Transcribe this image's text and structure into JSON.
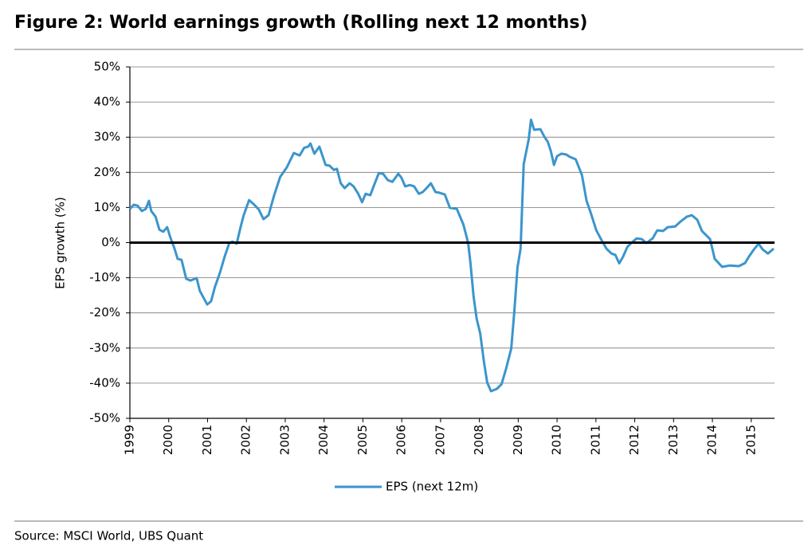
{
  "chart_data": {
    "type": "line",
    "title": "Figure 2: World earnings growth (Rolling next 12 months)",
    "ylabel": "EPS growth (%)",
    "source": "Source:  MSCI World, UBS Quant",
    "x": [
      1999.0,
      1999.1,
      1999.2,
      1999.31,
      1999.41,
      1999.49,
      1999.55,
      1999.66,
      1999.76,
      1999.86,
      1999.96,
      2000.04,
      2000.15,
      2000.23,
      2000.33,
      2000.45,
      2000.56,
      2000.72,
      2000.8,
      2000.99,
      2001.09,
      2001.19,
      2001.32,
      2001.44,
      2001.56,
      2001.64,
      2001.75,
      2001.85,
      2001.93,
      2002.07,
      2002.2,
      2002.32,
      2002.44,
      2002.57,
      2002.71,
      2002.87,
      2003.04,
      2003.22,
      2003.37,
      2003.49,
      2003.59,
      2003.65,
      2003.75,
      2003.88,
      2004.04,
      2004.14,
      2004.25,
      2004.33,
      2004.43,
      2004.53,
      2004.66,
      2004.76,
      2004.88,
      2004.98,
      2005.07,
      2005.19,
      2005.29,
      2005.41,
      2005.52,
      2005.64,
      2005.76,
      2005.91,
      2005.99,
      2006.09,
      2006.21,
      2006.32,
      2006.44,
      2006.54,
      2006.64,
      2006.75,
      2006.87,
      2006.97,
      2007.11,
      2007.24,
      2007.42,
      2007.59,
      2007.71,
      2007.77,
      2007.85,
      2007.93,
      2008.02,
      2008.12,
      2008.2,
      2008.3,
      2008.45,
      2008.57,
      2008.69,
      2008.82,
      2008.9,
      2008.98,
      2009.06,
      2009.14,
      2009.27,
      2009.33,
      2009.41,
      2009.57,
      2009.68,
      2009.76,
      2009.84,
      2009.92,
      2010.0,
      2010.11,
      2010.23,
      2010.33,
      2010.48,
      2010.64,
      2010.76,
      2010.86,
      2011.01,
      2011.13,
      2011.27,
      2011.4,
      2011.5,
      2011.6,
      2011.7,
      2011.81,
      2011.93,
      2012.05,
      2012.18,
      2012.3,
      2012.46,
      2012.58,
      2012.73,
      2012.85,
      2013.04,
      2013.18,
      2013.34,
      2013.47,
      2013.61,
      2013.73,
      2013.94,
      2014.06,
      2014.25,
      2014.45,
      2014.68,
      2014.84,
      2014.94,
      2015.07,
      2015.19,
      2015.29,
      2015.43,
      2015.58
    ],
    "series": [
      {
        "name": "EPS (next 12m)",
        "color": "#3b95cc",
        "values": [
          9.6,
          10.8,
          10.5,
          9,
          9.6,
          11.9,
          9,
          7.4,
          3.7,
          3.1,
          4.4,
          1.5,
          -1.7,
          -4.6,
          -4.9,
          -10.3,
          -10.8,
          -10.1,
          -13.7,
          -17.6,
          -16.7,
          -12.6,
          -8.5,
          -4,
          -0.1,
          0.3,
          -0.3,
          4.4,
          7.8,
          12.1,
          10.8,
          9.4,
          6.7,
          7.8,
          13.3,
          18.7,
          21.4,
          25.5,
          24.8,
          27,
          27.3,
          28.2,
          25.3,
          27.3,
          22.1,
          21.9,
          20.7,
          21,
          16.9,
          15.5,
          16.9,
          16,
          13.9,
          11.5,
          13.9,
          13.5,
          16.4,
          19.8,
          19.6,
          17.8,
          17.3,
          19.6,
          18.5,
          16,
          16.4,
          16,
          13.9,
          14.4,
          15.5,
          16.9,
          14.4,
          14.2,
          13.7,
          9.9,
          9.6,
          5.1,
          -0.1,
          -5.8,
          -15.3,
          -21.7,
          -25.8,
          -34.2,
          -39.8,
          -42.3,
          -41.6,
          -40.3,
          -35.8,
          -30.1,
          -19.4,
          -7.1,
          -1.7,
          22.3,
          29.4,
          35,
          32.1,
          32.3,
          30,
          28.7,
          26,
          22.1,
          24.6,
          25.3,
          25.1,
          24.4,
          23.7,
          19.2,
          11.9,
          8.7,
          3.5,
          1,
          -1.7,
          -3.1,
          -3.5,
          -5.9,
          -4,
          -1.2,
          0.1,
          1.2,
          1,
          -0.1,
          1.2,
          3.5,
          3.3,
          4.4,
          4.6,
          6,
          7.4,
          7.8,
          6.5,
          3.3,
          1,
          -4.6,
          -6.9,
          -6.5,
          -6.7,
          -5.8,
          -4,
          -1.9,
          -0.3,
          -1.9,
          -3.1,
          -1.7
        ]
      }
    ],
    "xlim": [
      1999,
      2015.6
    ],
    "xticks": [
      1999,
      2000,
      2001,
      2002,
      2003,
      2004,
      2005,
      2006,
      2007,
      2008,
      2009,
      2010,
      2011,
      2012,
      2013,
      2014,
      2015
    ],
    "ylim": [
      -50,
      50
    ],
    "yticks": [
      {
        "value": -50,
        "label": "-50%"
      },
      {
        "value": -40,
        "label": "-40%"
      },
      {
        "value": -30,
        "label": "-30%"
      },
      {
        "value": -20,
        "label": "-20%"
      },
      {
        "value": -10,
        "label": "-10%"
      },
      {
        "value": 0,
        "label": "0%"
      },
      {
        "value": 10,
        "label": "10%"
      },
      {
        "value": 20,
        "label": "20%"
      },
      {
        "value": 30,
        "label": "30%"
      },
      {
        "value": 40,
        "label": "40%"
      },
      {
        "value": 50,
        "label": "50%"
      }
    ],
    "grid": true,
    "zero_line": true,
    "legend": "bottom"
  }
}
